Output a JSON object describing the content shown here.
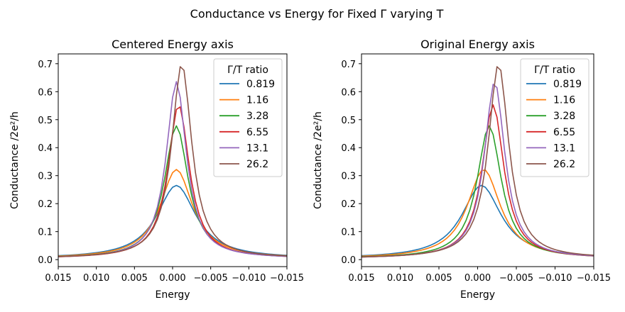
{
  "figure": {
    "suptitle": "Conductance vs Energy for Fixed Γ varying T"
  },
  "chart_data": [
    {
      "type": "line",
      "title": "Centered Energy axis",
      "xlabel": "Energy",
      "ylabel": "Conductance /2e²/h",
      "xlim": [
        0.015,
        -0.015
      ],
      "ylim": [
        -0.025,
        0.735
      ],
      "xticks": [
        0.015,
        0.01,
        0.005,
        0.0,
        -0.005,
        -0.01,
        -0.015
      ],
      "xtick_labels": [
        "0.015",
        "0.010",
        "0.005",
        "0.000",
        "−0.005",
        "−0.010",
        "−0.015"
      ],
      "yticks": [
        0.0,
        0.1,
        0.2,
        0.3,
        0.4,
        0.5,
        0.6,
        0.7
      ],
      "ytick_labels": [
        "0.0",
        "0.1",
        "0.2",
        "0.3",
        "0.4",
        "0.5",
        "0.6",
        "0.7"
      ],
      "legend": {
        "title": "Γ/T ratio",
        "location": "upper right"
      },
      "series": [
        {
          "name": "0.819",
          "color": "#1f77b4",
          "peak_x": -0.0005,
          "peak": 0.265,
          "hwhm": 0.0031,
          "base": 0.004
        },
        {
          "name": "1.16",
          "color": "#ff7f0e",
          "peak_x": -0.0005,
          "peak": 0.322,
          "hwhm": 0.0026,
          "base": 0.004
        },
        {
          "name": "3.28",
          "color": "#2ca02c",
          "peak_x": -0.0005,
          "peak": 0.478,
          "hwhm": 0.0019,
          "base": 0.004
        },
        {
          "name": "6.55",
          "color": "#d62728",
          "peak_x": -0.0008,
          "peak": 0.553,
          "hwhm": 0.0017,
          "base": 0.004
        },
        {
          "name": "13.1",
          "color": "#9467bd",
          "peak_x": -0.0005,
          "peak": 0.636,
          "hwhm": 0.0016,
          "base": 0.004
        },
        {
          "name": "26.2",
          "color": "#8c564b",
          "peak_x": -0.0012,
          "peak": 0.7,
          "hwhm": 0.0016,
          "base": 0.004
        }
      ]
    },
    {
      "type": "line",
      "title": "Original Energy axis",
      "xlabel": "Energy",
      "ylabel": "Conductance /2e²/h",
      "xlim": [
        0.015,
        -0.015
      ],
      "ylim": [
        -0.025,
        0.735
      ],
      "xticks": [
        0.015,
        0.01,
        0.005,
        0.0,
        -0.005,
        -0.01,
        -0.015
      ],
      "xtick_labels": [
        "0.015",
        "0.010",
        "0.005",
        "0.000",
        "−0.005",
        "−0.010",
        "−0.015"
      ],
      "yticks": [
        0.0,
        0.1,
        0.2,
        0.3,
        0.4,
        0.5,
        0.6,
        0.7
      ],
      "ytick_labels": [
        "0.0",
        "0.1",
        "0.2",
        "0.3",
        "0.4",
        "0.5",
        "0.6",
        "0.7"
      ],
      "legend": {
        "title": "Γ/T ratio",
        "location": "upper right"
      },
      "series": [
        {
          "name": "0.819",
          "color": "#1f77b4",
          "peak_x": -0.0005,
          "peak": 0.265,
          "hwhm": 0.0031,
          "base": 0.004
        },
        {
          "name": "1.16",
          "color": "#ff7f0e",
          "peak_x": -0.0008,
          "peak": 0.322,
          "hwhm": 0.0026,
          "base": 0.004
        },
        {
          "name": "3.28",
          "color": "#2ca02c",
          "peak_x": -0.0015,
          "peak": 0.478,
          "hwhm": 0.0019,
          "base": 0.004
        },
        {
          "name": "6.55",
          "color": "#d62728",
          "peak_x": -0.002,
          "peak": 0.553,
          "hwhm": 0.0017,
          "base": 0.004
        },
        {
          "name": "13.1",
          "color": "#9467bd",
          "peak_x": -0.0022,
          "peak": 0.636,
          "hwhm": 0.0016,
          "base": 0.004
        },
        {
          "name": "26.2",
          "color": "#8c564b",
          "peak_x": -0.0027,
          "peak": 0.7,
          "hwhm": 0.0016,
          "base": 0.004
        }
      ]
    }
  ]
}
